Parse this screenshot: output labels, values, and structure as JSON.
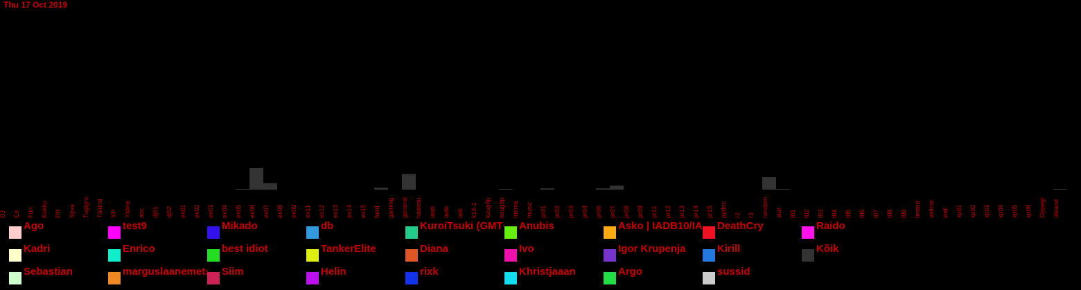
{
  "chart_data": {
    "type": "bar",
    "title": "Thu 17 Oct 2019",
    "categories": [
      "DJ",
      "EX",
      "Fun",
      "Kokku",
      "PR",
      "Syva",
      "Tugigru",
      "Täiend",
      "XP",
      "Yldine",
      "aoc",
      "dj01",
      "dj02",
      "ex01",
      "ex02",
      "ex03",
      "ex04",
      "ex05",
      "ex06",
      "ex07",
      "ex08",
      "ex09",
      "ex11",
      "ex12",
      "ex13",
      "ex14",
      "ex15",
      "food",
      "gaming",
      "general",
      "hääletu",
      "iaab",
      "iadb",
      "iaib",
      "k14-1",
      "kaugõp",
      "kaugõp",
      "meme",
      "music",
      "pr01",
      "pr02",
      "pr03",
      "pr04",
      "pr06",
      "pr07",
      "pr08",
      "pr09",
      "pr11",
      "pr12",
      "pr13",
      "pr14",
      "pr15",
      "pydoc",
      "r2",
      "r3",
      "random",
      "stat",
      "t01",
      "t02",
      "t03",
      "t04",
      "t05",
      "t06",
      "t07",
      "t08",
      "t09",
      "tested",
      "valkne",
      "wat",
      "xp01",
      "xp02",
      "xp03",
      "xp04",
      "xp05",
      "xp06",
      "Oppegr",
      "üleand"
    ],
    "series": [
      {
        "name": "Kõik",
        "values": [
          0,
          0,
          0,
          0,
          0,
          0,
          0,
          0,
          0,
          0,
          0,
          0,
          0,
          0,
          0,
          0,
          0,
          1,
          33,
          10,
          0,
          0,
          0,
          0,
          0,
          0,
          0,
          3,
          0,
          24,
          0,
          0,
          0,
          0,
          0,
          0,
          1,
          0,
          0,
          2,
          0,
          0,
          0,
          2,
          6,
          0,
          0,
          0,
          0,
          0,
          0,
          0,
          0,
          0,
          0,
          19,
          1,
          0,
          0,
          0,
          0,
          0,
          0,
          0,
          0,
          0,
          0,
          0,
          0,
          0,
          0,
          0,
          0,
          0,
          0,
          0,
          1
        ]
      }
    ],
    "ylim": [
      0,
      36
    ],
    "legend_position": "bottom",
    "legend": [
      {
        "name": "Ago",
        "color": "#ffcccc"
      },
      {
        "name": "test9",
        "color": "#ff00ff"
      },
      {
        "name": "Mikado",
        "color": "#3311ee"
      },
      {
        "name": "db",
        "color": "#3399dd"
      },
      {
        "name": "KuroiTsuki (GMT+2)",
        "color": "#22cc88"
      },
      {
        "name": "Anubis",
        "color": "#66ee11"
      },
      {
        "name": "Asko | IADB10/IAIB12",
        "color": "#ffaa11"
      },
      {
        "name": "DeathCry",
        "color": "#ee1122"
      },
      {
        "name": "Raido",
        "color": "#ff11ee"
      },
      {
        "name": "Kadri",
        "color": "#ffffcc"
      },
      {
        "name": "Enrico",
        "color": "#11eecc"
      },
      {
        "name": "best idiot",
        "color": "#22dd22"
      },
      {
        "name": "TankerElite",
        "color": "#ddee11"
      },
      {
        "name": "Diana",
        "color": "#dd5522"
      },
      {
        "name": "Ivo",
        "color": "#ee11aa"
      },
      {
        "name": "Igor Krupenja",
        "color": "#7733cc"
      },
      {
        "name": "Kirill",
        "color": "#2277dd"
      },
      {
        "name": "Kõik",
        "color": "#333333"
      },
      {
        "name": "Sebastian",
        "color": "#ccffcc"
      },
      {
        "name": "marguslaanemets",
        "color": "#ee8822"
      },
      {
        "name": "Siim",
        "color": "#cc2255"
      },
      {
        "name": "Helin",
        "color": "#bb11ee"
      },
      {
        "name": "rixk",
        "color": "#1133ee"
      },
      {
        "name": "Khristjaaan",
        "color": "#11ddee"
      },
      {
        "name": "Argo",
        "color": "#22dd44"
      },
      {
        "name": "sussid",
        "color": "#cccccc"
      }
    ]
  }
}
